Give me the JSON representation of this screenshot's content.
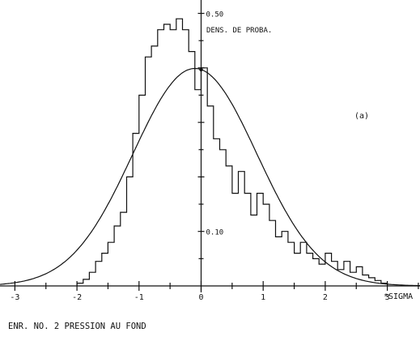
{
  "chart_data": {
    "type": "bar",
    "subtype": "histogram-with-normal-curve",
    "title": "",
    "caption": "ENR. NO. 2 PRESSION AU FOND",
    "panel_label": "(a)",
    "xlabel": "*SIGMA",
    "ylabel": "DENS. DE PROBA.",
    "xlim": [
      -3.75,
      3.75
    ],
    "ylim": [
      0,
      0.52
    ],
    "x_ticks": [
      -3,
      -2,
      -1,
      0,
      1,
      2,
      3
    ],
    "x_tick_labels": [
      "-3",
      "-2",
      "-1",
      "0",
      "1",
      "2",
      "3"
    ],
    "y_ticks_labeled": [
      0.1,
      0.5
    ],
    "y_tick_labels": [
      "0.10",
      "0.50"
    ],
    "grid": false,
    "legend": "none",
    "series": [
      {
        "kind": "histogram-step",
        "bin_edges": [
          -2.0,
          -1.9,
          -1.8,
          -1.7,
          -1.6,
          -1.5,
          -1.4,
          -1.3,
          -1.2,
          -1.1,
          -1.0,
          -0.9,
          -0.8,
          -0.7,
          -0.6,
          -0.5,
          -0.4,
          -0.3,
          -0.2,
          -0.1,
          0.0,
          0.1,
          0.2,
          0.3,
          0.4,
          0.5,
          0.6,
          0.7,
          0.8,
          0.9,
          1.0,
          1.1,
          1.2,
          1.3,
          1.4,
          1.5,
          1.6,
          1.7,
          1.8,
          1.9,
          2.0,
          2.1,
          2.2,
          2.3,
          2.4,
          2.5,
          2.6,
          2.7,
          2.8,
          2.9,
          3.0
        ],
        "values": [
          0.005,
          0.012,
          0.025,
          0.045,
          0.06,
          0.08,
          0.11,
          0.135,
          0.2,
          0.28,
          0.35,
          0.42,
          0.44,
          0.47,
          0.48,
          0.47,
          0.49,
          0.47,
          0.43,
          0.36,
          0.4,
          0.33,
          0.27,
          0.25,
          0.22,
          0.17,
          0.21,
          0.17,
          0.13,
          0.17,
          0.15,
          0.12,
          0.09,
          0.1,
          0.08,
          0.06,
          0.08,
          0.06,
          0.05,
          0.04,
          0.06,
          0.045,
          0.03,
          0.045,
          0.025,
          0.035,
          0.02,
          0.015,
          0.01,
          0.005
        ]
      },
      {
        "kind": "curve",
        "function": "normal",
        "mu": -0.1,
        "sigma": 1.0,
        "x_range": [
          -3.75,
          3.75
        ]
      }
    ]
  }
}
